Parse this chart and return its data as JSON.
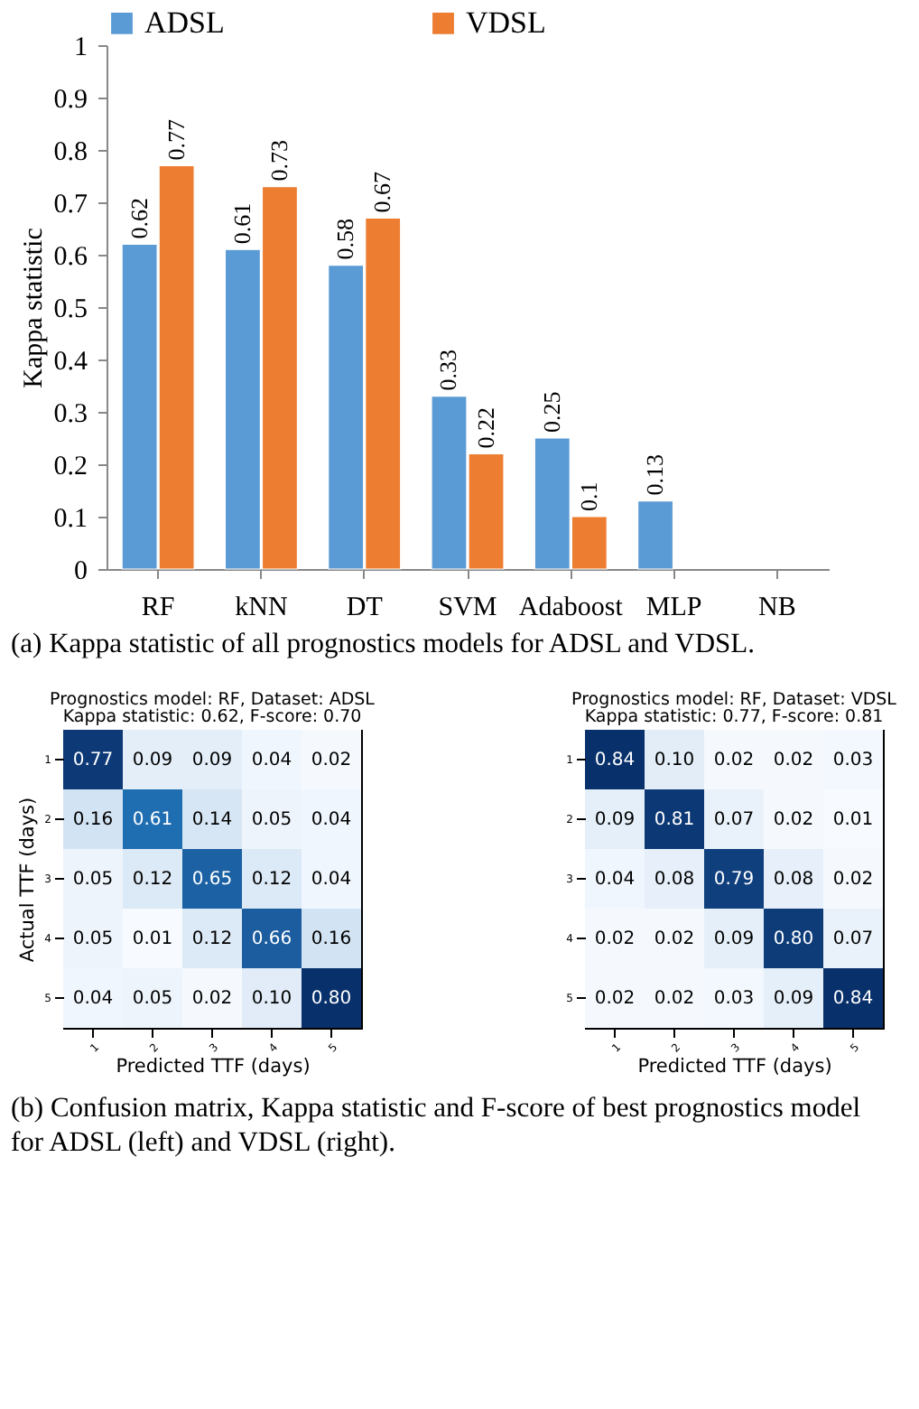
{
  "chart_data": [
    {
      "type": "bar",
      "ylabel": "Kappa statistic",
      "categories": [
        "RF",
        "kNN",
        "DT",
        "SVM",
        "Adaboost",
        "MLP",
        "NB"
      ],
      "series": [
        {
          "name": "ADSL",
          "color": "#5b9bd5",
          "values": [
            0.62,
            0.61,
            0.58,
            0.33,
            0.25,
            0.13,
            null
          ]
        },
        {
          "name": "VDSL",
          "color": "#ed7d31",
          "values": [
            0.77,
            0.73,
            0.67,
            0.22,
            0.1,
            null,
            null
          ]
        }
      ],
      "ylim": [
        0,
        1
      ],
      "yticks": [
        0,
        0.1,
        0.2,
        0.3,
        0.4,
        0.5,
        0.6,
        0.7,
        0.8,
        0.9,
        1
      ],
      "grid": false,
      "legend": "top",
      "data_labels": true,
      "annotations": [
        "(a) Kappa statistic of all prognostics models for ADSL and VDSL."
      ]
    },
    {
      "type": "heatmap",
      "title": "Prognostics model: RF, Dataset: ADSL",
      "subtitle": "Kappa statistic: 0.62, F-score: 0.70",
      "xlabel": "Predicted TTF (days)",
      "ylabel": "Actual TTF (days)",
      "categories": [
        "1",
        "2",
        "3",
        "4",
        "5"
      ],
      "y_categories": [
        "1",
        "2",
        "3",
        "4",
        "5"
      ],
      "cells": [
        [
          0.77,
          0.09,
          0.09,
          0.04,
          0.02
        ],
        [
          0.16,
          0.61,
          0.14,
          0.05,
          0.04
        ],
        [
          0.05,
          0.12,
          0.65,
          0.12,
          0.04
        ],
        [
          0.05,
          0.01,
          0.12,
          0.66,
          0.16
        ],
        [
          0.04,
          0.05,
          0.02,
          0.1,
          0.8
        ]
      ],
      "cell_labels": [
        [
          "0.77",
          "0.09",
          "0.09",
          "0.04",
          "0.02"
        ],
        [
          "0.16",
          "0.61",
          "0.14",
          "0.05",
          "0.04"
        ],
        [
          "0.05",
          "0.12",
          "0.65",
          "0.12",
          "0.04"
        ],
        [
          "0.05",
          "0.01",
          "0.12",
          "0.66",
          "0.16"
        ],
        [
          "0.04",
          "0.05",
          "0.02",
          "0.10",
          "0.80"
        ]
      ],
      "annotations": [
        "(b) Confusion matrix, Kappa statistic and F-score of best prognostics model for ADSL (left) and VDSL (right)."
      ]
    },
    {
      "type": "heatmap",
      "title": "Prognostics model: RF, Dataset: VDSL",
      "subtitle": "Kappa statistic: 0.77, F-score: 0.81",
      "xlabel": "Predicted TTF (days)",
      "categories": [
        "1",
        "2",
        "3",
        "4",
        "5"
      ],
      "y_categories": [
        "1",
        "2",
        "3",
        "4",
        "5"
      ],
      "cells": [
        [
          0.84,
          0.1,
          0.02,
          0.02,
          0.03
        ],
        [
          0.09,
          0.81,
          0.07,
          0.02,
          0.01
        ],
        [
          0.04,
          0.08,
          0.79,
          0.08,
          0.02
        ],
        [
          0.02,
          0.02,
          0.09,
          0.8,
          0.07
        ],
        [
          0.02,
          0.02,
          0.03,
          0.09,
          0.84
        ]
      ],
      "cell_labels": [
        [
          "0.84",
          "0.10",
          "0.02",
          "0.02",
          "0.03"
        ],
        [
          "0.09",
          "0.81",
          "0.07",
          "0.02",
          "0.01"
        ],
        [
          "0.04",
          "0.08",
          "0.79",
          "0.08",
          "0.02"
        ],
        [
          "0.02",
          "0.02",
          "0.09",
          "0.80",
          "0.07"
        ],
        [
          "0.02",
          "0.02",
          "0.03",
          "0.09",
          "0.84"
        ]
      ]
    }
  ]
}
